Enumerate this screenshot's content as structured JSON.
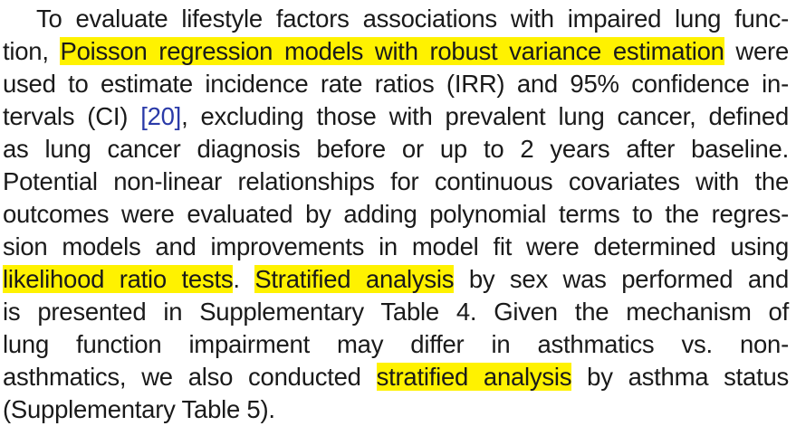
{
  "paragraph": {
    "l1": "To evaluate lifestyle factors associations with impaired lung func-",
    "l2_a": "tion,",
    "l2_hl": "Poisson regression models with robust variance estimation",
    "l2_b": "were",
    "l3": "used to estimate incidence rate ratios (IRR) and 95% confidence in-",
    "l4_a": "tervals (CI)",
    "l4_ref": "[20]",
    "l4_b": ", excluding those with prevalent lung cancer, defined",
    "l5": "as lung cancer diagnosis before or up to 2 years after baseline.",
    "l6": "Potential non-linear relationships for continuous covariates with the",
    "l7": "outcomes were evaluated by adding polynomial terms to the regres-",
    "l8": "sion models and improvements in model fit were determined using",
    "l9_hl1": "likelihood ratio tests",
    "l9_a": ".",
    "l9_hl2": "Stratified analysis",
    "l9_b": "by sex was performed and",
    "l10": "is presented in Supplementary Table 4. Given the mechanism of",
    "l11": "lung function impairment may differ in asthmatics vs. non-",
    "l12_a": "asthmatics, we also conducted",
    "l12_hl": "stratified analysis",
    "l12_b": "by asthma status",
    "l13": "(Supplementary Table 5)."
  },
  "colors": {
    "highlight": "#fff200",
    "text": "#1a1a1a",
    "reference_link": "#2a3aa8"
  }
}
